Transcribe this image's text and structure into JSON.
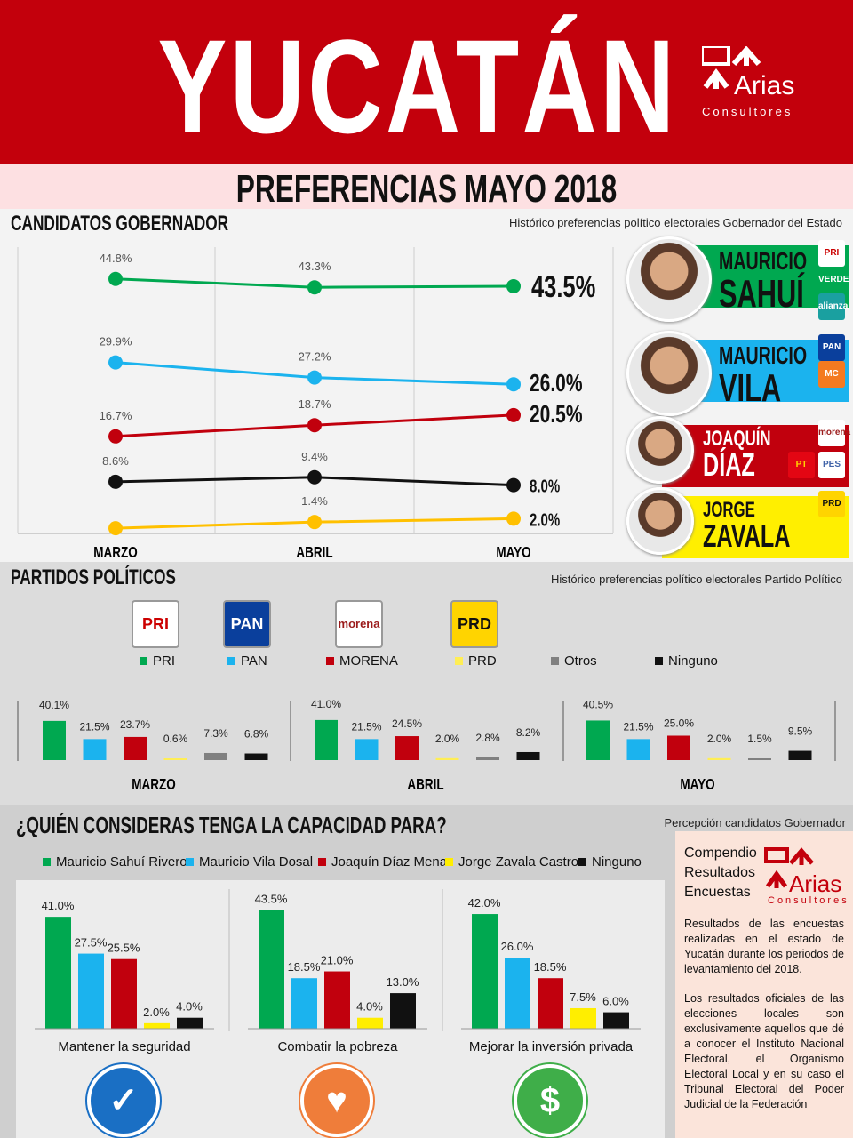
{
  "header": {
    "title": "YUCATÁN",
    "logo_text": "Arias",
    "logo_sub": "Consultores"
  },
  "subtitle": "PREFERENCIAS MAYO 2018",
  "colors": {
    "green": "#00a850",
    "blue": "#1bb3ee",
    "red": "#c1000d",
    "yellow": "#ffd600",
    "gray": "#808080",
    "black": "#111111"
  },
  "section1": {
    "title": "CANDIDATOS GOBERNADOR",
    "subtitle": "Histórico preferencias político electorales Gobernador del Estado"
  },
  "candidates": [
    {
      "first": "MAURICIO",
      "last": "SAHUÍ",
      "color": "#00a850",
      "text": "#111",
      "logos": [
        "PRI",
        "VERDE",
        "alianza"
      ]
    },
    {
      "first": "MAURICIO",
      "last": "VILA",
      "color": "#1bb3ee",
      "text": "#111",
      "logos": [
        "PAN",
        "MC"
      ]
    },
    {
      "first": "JOAQUÍN",
      "last": "DÍAZ",
      "color": "#c1000d",
      "text": "#fff",
      "logos": [
        "morena",
        "PT",
        "PES"
      ]
    },
    {
      "first": "JORGE",
      "last": "ZAVALA",
      "color": "#ffef00",
      "text": "#111",
      "logos": [
        "PRD"
      ]
    }
  ],
  "chart_data": [
    {
      "type": "line",
      "title": "CANDIDATOS GOBERNADOR",
      "categories": [
        "MARZO",
        "ABRIL",
        "MAYO"
      ],
      "ylim": [
        0,
        50
      ],
      "series": [
        {
          "name": "Mauricio Sahuí",
          "color": "#00a850",
          "values": [
            44.8,
            43.3,
            43.5
          ],
          "labels": [
            "44.8%",
            "43.3%",
            "43.5%"
          ]
        },
        {
          "name": "Mauricio Vila",
          "color": "#1bb3ee",
          "values": [
            29.9,
            27.2,
            26.0
          ],
          "labels": [
            "29.9%",
            "27.2%",
            "26.0%"
          ]
        },
        {
          "name": "Joaquín Díaz",
          "color": "#c1000d",
          "values": [
            16.7,
            18.7,
            20.5
          ],
          "labels": [
            "16.7%",
            "18.7%",
            "20.5%"
          ]
        },
        {
          "name": "Ninguno",
          "color": "#111111",
          "values": [
            8.6,
            9.4,
            8.0
          ],
          "labels": [
            "8.6%",
            "9.4%",
            "8.0%"
          ]
        },
        {
          "name": "Jorge Zavala",
          "color": "#ffc000",
          "values": [
            0.3,
            1.4,
            2.0
          ],
          "labels": [
            "",
            "1.4%",
            "2.0%"
          ]
        }
      ]
    },
    {
      "type": "bar",
      "title": "PARTIDOS POLÍTICOS",
      "subtitle": "Histórico preferencias político electorales Partido Político",
      "legend": [
        "PRI",
        "PAN",
        "MORENA",
        "PRD",
        "Otros",
        "Ninguno"
      ],
      "colors": [
        "#00a850",
        "#1bb3ee",
        "#c1000d",
        "#ffee55",
        "#808080",
        "#111111"
      ],
      "groups": [
        {
          "name": "MARZO",
          "values": [
            40.1,
            21.5,
            23.7,
            0.6,
            7.3,
            6.8
          ],
          "labels": [
            "40.1%",
            "21.5%",
            "23.7%",
            "0.6%",
            "7.3%",
            "6.8%"
          ]
        },
        {
          "name": "ABRIL",
          "values": [
            41.0,
            21.5,
            24.5,
            2.0,
            2.8,
            8.2
          ],
          "labels": [
            "41.0%",
            "21.5%",
            "24.5%",
            "2.0%",
            "2.8%",
            "8.2%"
          ]
        },
        {
          "name": "MAYO",
          "values": [
            40.5,
            21.5,
            25.0,
            2.0,
            1.5,
            9.5
          ],
          "labels": [
            "40.5%",
            "21.5%",
            "25.0%",
            "2.0%",
            "1.5%",
            "9.5%"
          ]
        }
      ]
    },
    {
      "type": "bar",
      "title": "¿QUIÉN CONSIDERAS TENGA LA CAPACIDAD PARA?",
      "subtitle": "Percepción candidatos Gobernador",
      "legend": [
        "Mauricio Sahuí Rivero",
        "Mauricio Vila Dosal",
        "Joaquín Díaz Mena",
        "Jorge Zavala Castro",
        "Ninguno"
      ],
      "colors": [
        "#00a850",
        "#1bb3ee",
        "#c1000d",
        "#ffee00",
        "#111111"
      ],
      "groups": [
        {
          "name": "Mantener la seguridad",
          "values": [
            41.0,
            27.5,
            25.5,
            2.0,
            4.0
          ],
          "labels": [
            "41.0%",
            "27.5%",
            "25.5%",
            "2.0%",
            "4.0%"
          ]
        },
        {
          "name": "Combatir la pobreza",
          "values": [
            43.5,
            18.5,
            21.0,
            4.0,
            13.0
          ],
          "labels": [
            "43.5%",
            "18.5%",
            "21.0%",
            "4.0%",
            "13.0%"
          ]
        },
        {
          "name": "Mejorar la inversión privada",
          "values": [
            42.0,
            26.0,
            18.5,
            7.5,
            6.0
          ],
          "labels": [
            "42.0%",
            "26.0%",
            "18.5%",
            "7.5%",
            "6.0%"
          ]
        }
      ]
    }
  ],
  "parties": [
    "PRI",
    "PAN",
    "morena",
    "PRD"
  ],
  "panel": {
    "title": [
      "Compendio",
      "Resultados",
      "Encuestas"
    ],
    "logo_text": "Arias",
    "logo_sub": "Consultores",
    "p1": "Resultados de las encuestas realizadas en el estado de Yucatán durante los periodos de levantamiento del 2018.",
    "p2": "Los resultados oficiales de las elecciones locales son exclusivamente aquellos que dé a conocer el Instituto Nacional Electoral, el Organismo Electoral Local y en su caso el Tribunal Electoral del Poder Judicial de la Federación"
  },
  "icons": [
    "shield-check-icon",
    "heart-hand-icon",
    "money-hand-icon"
  ]
}
